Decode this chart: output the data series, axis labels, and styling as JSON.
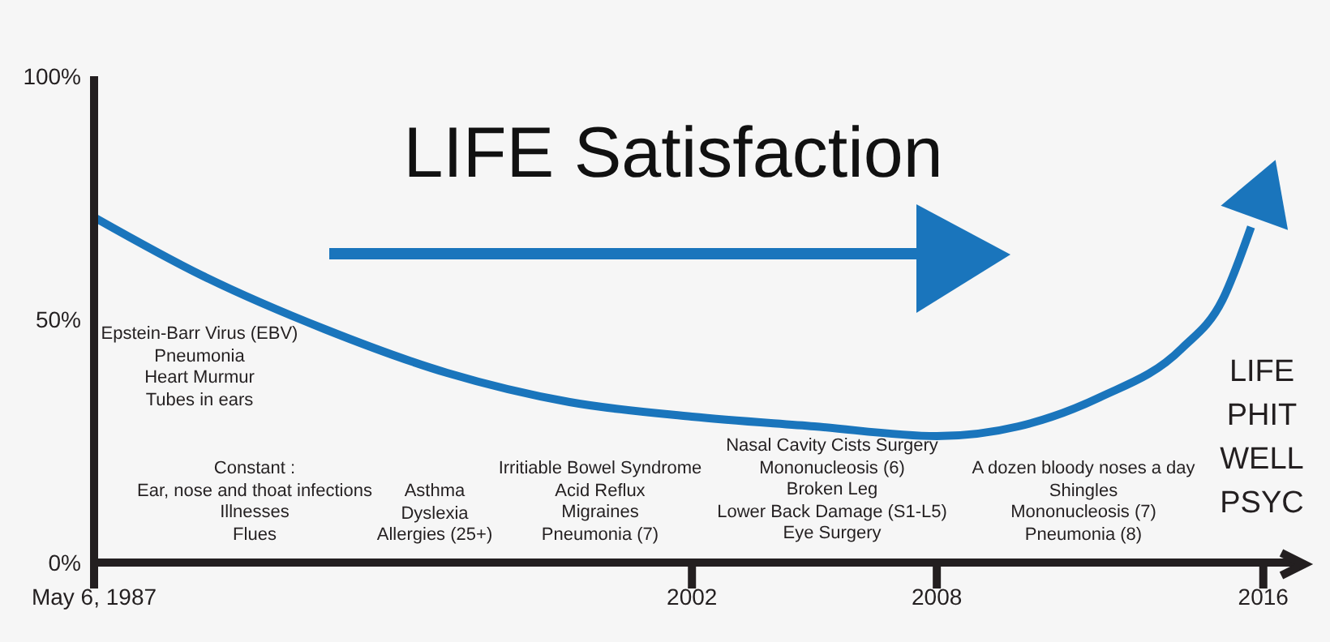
{
  "chart_data": {
    "type": "line",
    "title": "LIFE Satisfaction",
    "x": [
      1987.35,
      1990,
      1993,
      1996,
      1999,
      2002,
      2005,
      2008,
      2010,
      2012,
      2014,
      2015,
      2015.7
    ],
    "series": [
      {
        "color": "#1a75bc",
        "values": [
          71,
          59,
          48,
          39,
          33,
          30,
          28,
          26,
          28,
          34,
          44,
          54,
          69
        ]
      }
    ],
    "xlim": [
      1987.35,
      2016.8
    ],
    "xticks": [
      {
        "value": 1987.35,
        "label": "May 6, 1987"
      },
      2002,
      2008,
      2016
    ],
    "ylim": [
      0,
      100
    ],
    "yticks": [
      {
        "value": 0,
        "label": "0%"
      },
      {
        "value": 50,
        "label": "50%"
      },
      {
        "value": 100,
        "label": "100%"
      }
    ],
    "grid": false,
    "legend": false,
    "marker": "none",
    "line_style": "solid",
    "annotations": [
      "Epstein-Barr Virus (EBV)\nPneumonia\nHeart Murmur\nTubes in ears",
      "Constant :\nEar, nose and thoat infections\nIllnesses\nFlues",
      "Asthma\nDyslexia\nAllergies (25+)",
      "Irritiable Bowel Syndrome\nAcid Reflux\nMigraines\nPneumonia (7)",
      "Nasal Cavity Cists Surgery\nMononucleosis (6)\nBroken Leg\nLower Back Damage (S1-L5)\nEye Surgery",
      "A dozen bloody noses a day\nShingles\nMononucleosis (7)\nPneumonia (8)",
      "LIFE\nPHIT\nWELL\nPSYC"
    ]
  }
}
